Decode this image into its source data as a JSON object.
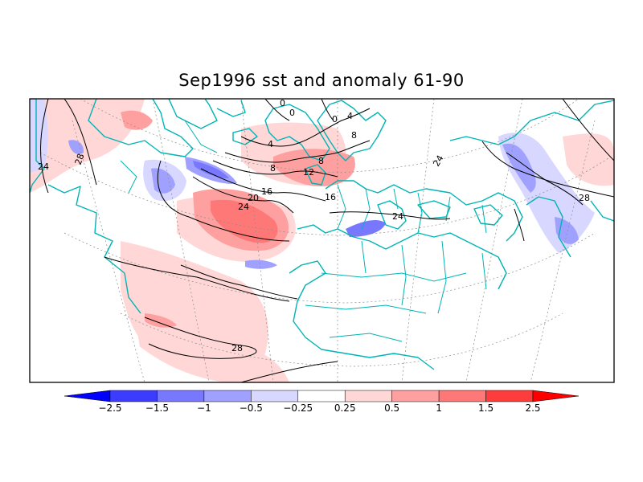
{
  "title": "Sep1996 sst and anomaly 61-90",
  "colorbar": {
    "colors": [
      "#0000ff",
      "#3c3cff",
      "#7878ff",
      "#a0a0ff",
      "#d7d7ff",
      "#ffffff",
      "#ffd7d7",
      "#ffa0a0",
      "#ff7878",
      "#ff3c3c",
      "#ff0000"
    ],
    "labels": [
      "-2.5",
      "-1.5",
      "-1",
      "-0.5",
      "-0.25",
      "0.25",
      "0.5",
      "1",
      "1.5",
      "2.5"
    ]
  },
  "contour_labels": [
    {
      "name": "sst-label-24-west",
      "text": "24"
    },
    {
      "name": "sst-label-28-west",
      "text": "28"
    },
    {
      "name": "sst-label-0-north-a",
      "text": "0"
    },
    {
      "name": "sst-label-0-north-b",
      "text": "0"
    },
    {
      "name": "sst-label-0-north-c",
      "text": "0"
    },
    {
      "name": "sst-label-4-north",
      "text": "4"
    },
    {
      "name": "sst-label-4-mid",
      "text": "4"
    },
    {
      "name": "sst-label-8-norway",
      "text": "8"
    },
    {
      "name": "sst-label-8-mid",
      "text": "8"
    },
    {
      "name": "sst-label-8-east",
      "text": "8"
    },
    {
      "name": "sst-label-12",
      "text": "12"
    },
    {
      "name": "sst-label-16-a",
      "text": "16"
    },
    {
      "name": "sst-label-16-b",
      "text": "16"
    },
    {
      "name": "sst-label-20",
      "text": "20"
    },
    {
      "name": "sst-label-24-atlantic",
      "text": "24"
    },
    {
      "name": "sst-label-24-med",
      "text": "24"
    },
    {
      "name": "sst-label-24-red-sea",
      "text": "24"
    },
    {
      "name": "sst-label-28-arabian",
      "text": "28"
    },
    {
      "name": "sst-label-28-south",
      "text": "28"
    }
  ]
}
